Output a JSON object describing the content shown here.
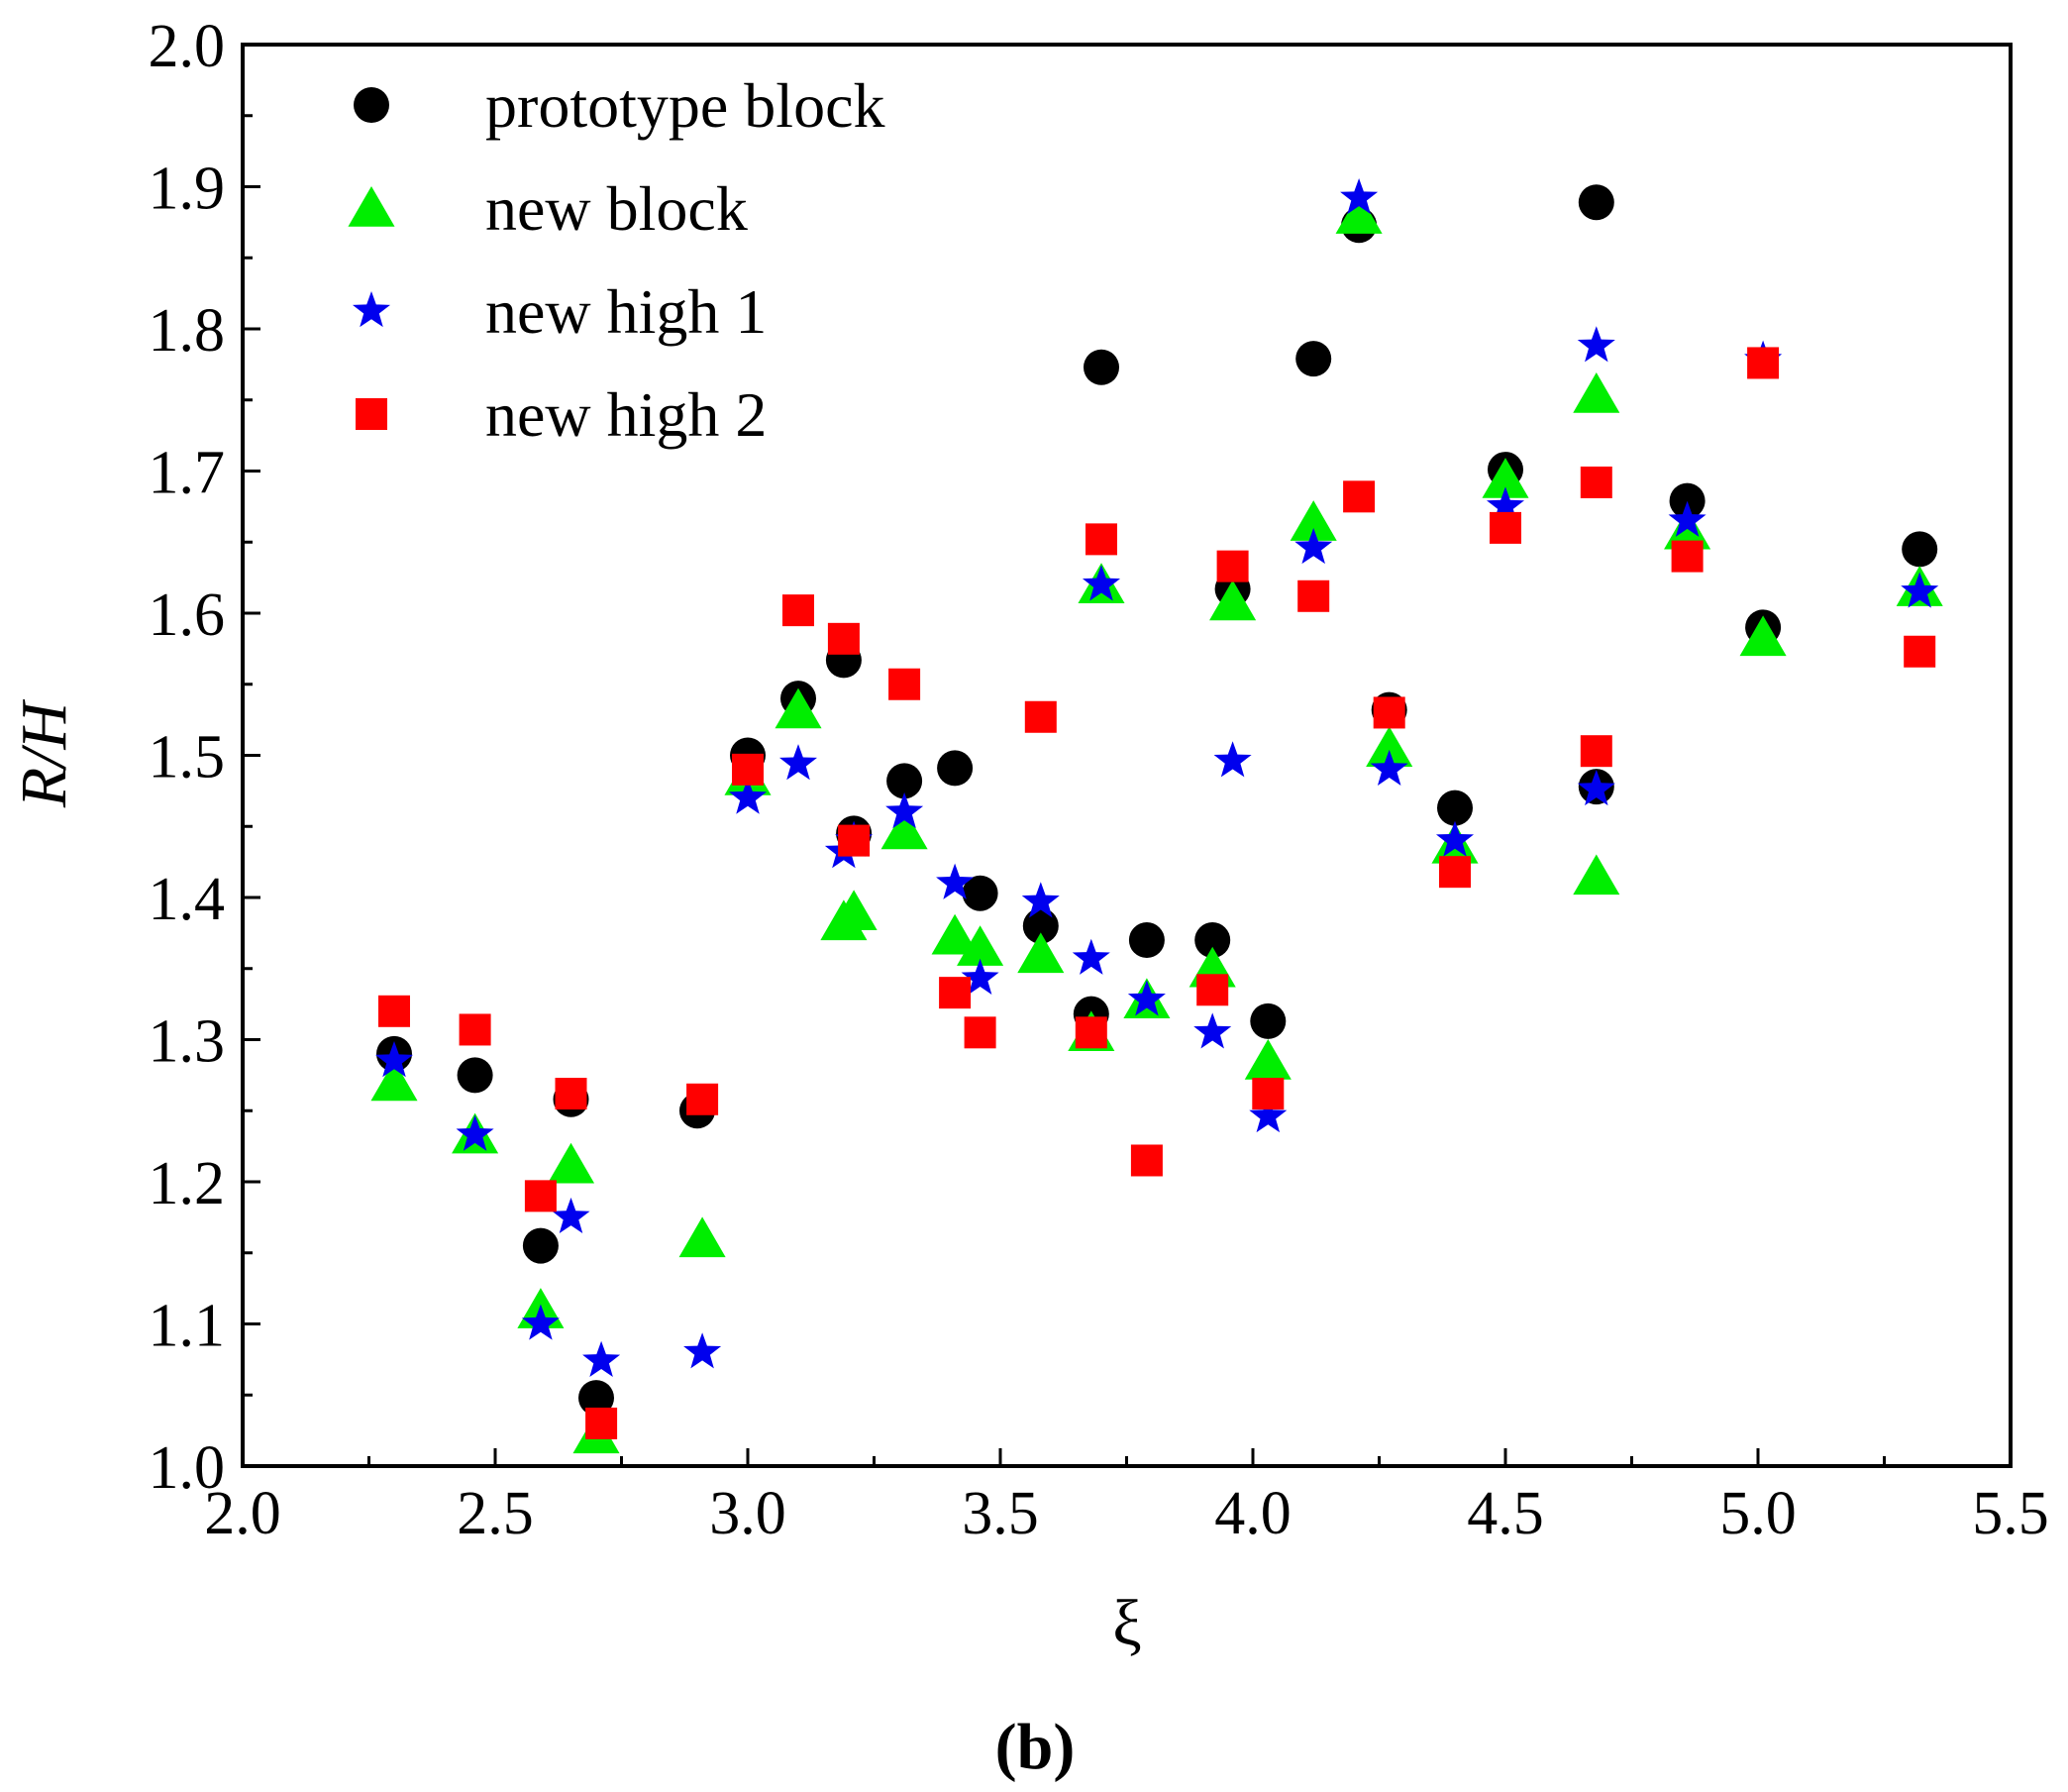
{
  "chart_data": {
    "type": "scatter",
    "title": "",
    "panel_label": "(b)",
    "xlabel": "ξ",
    "ylabel": "R/H",
    "xlim": [
      2.0,
      5.5
    ],
    "ylim": [
      1.0,
      2.0
    ],
    "x_ticks": [
      "2.0",
      "2.5",
      "3.0",
      "3.5",
      "4.0",
      "4.5",
      "5.0",
      "5.5"
    ],
    "y_ticks": [
      "1.0",
      "1.1",
      "1.2",
      "1.3",
      "1.4",
      "1.5",
      "1.6",
      "1.7",
      "1.8",
      "1.9",
      "2.0"
    ],
    "grid": false,
    "legend_position": "top-left",
    "series": [
      {
        "name": "prototype block",
        "marker": "circle",
        "color": "#000000",
        "points": [
          [
            2.3,
            1.29
          ],
          [
            2.46,
            1.275
          ],
          [
            2.59,
            1.155
          ],
          [
            2.65,
            1.258
          ],
          [
            2.7,
            1.048
          ],
          [
            2.9,
            1.25
          ],
          [
            3.0,
            1.5
          ],
          [
            3.1,
            1.54
          ],
          [
            3.19,
            1.567
          ],
          [
            3.21,
            1.445
          ],
          [
            3.31,
            1.482
          ],
          [
            3.41,
            1.491
          ],
          [
            3.46,
            1.403
          ],
          [
            3.58,
            1.38
          ],
          [
            3.68,
            1.318
          ],
          [
            3.7,
            1.773
          ],
          [
            3.79,
            1.37
          ],
          [
            3.92,
            1.37
          ],
          [
            3.96,
            1.617
          ],
          [
            4.03,
            1.313
          ],
          [
            4.12,
            1.779
          ],
          [
            4.21,
            1.873
          ],
          [
            4.27,
            1.532
          ],
          [
            4.4,
            1.463
          ],
          [
            4.5,
            1.701
          ],
          [
            4.68,
            1.889
          ],
          [
            4.68,
            1.478
          ],
          [
            4.86,
            1.679
          ],
          [
            5.01,
            1.59
          ],
          [
            5.32,
            1.645
          ]
        ]
      },
      {
        "name": "new block",
        "marker": "triangle",
        "color": "#00ee00",
        "points": [
          [
            2.3,
            1.27
          ],
          [
            2.46,
            1.233
          ],
          [
            2.59,
            1.11
          ],
          [
            2.65,
            1.212
          ],
          [
            2.7,
            1.022
          ],
          [
            2.91,
            1.16
          ],
          [
            3.0,
            1.485
          ],
          [
            3.1,
            1.532
          ],
          [
            3.19,
            1.383
          ],
          [
            3.21,
            1.39
          ],
          [
            3.31,
            1.447
          ],
          [
            3.41,
            1.373
          ],
          [
            3.46,
            1.365
          ],
          [
            3.58,
            1.36
          ],
          [
            3.68,
            1.305
          ],
          [
            3.7,
            1.62
          ],
          [
            3.79,
            1.328
          ],
          [
            3.92,
            1.35
          ],
          [
            3.96,
            1.608
          ],
          [
            4.03,
            1.285
          ],
          [
            4.12,
            1.664
          ],
          [
            4.21,
            1.88
          ],
          [
            4.27,
            1.505
          ],
          [
            4.4,
            1.437
          ],
          [
            4.5,
            1.694
          ],
          [
            4.68,
            1.754
          ],
          [
            4.68,
            1.415
          ],
          [
            4.86,
            1.658
          ],
          [
            5.01,
            1.583
          ],
          [
            5.32,
            1.618
          ]
        ]
      },
      {
        "name": "new high 1",
        "marker": "star",
        "color": "#0000ee",
        "points": [
          [
            2.3,
            1.285
          ],
          [
            2.46,
            1.233
          ],
          [
            2.59,
            1.1
          ],
          [
            2.65,
            1.175
          ],
          [
            2.71,
            1.074
          ],
          [
            2.91,
            1.08
          ],
          [
            3.0,
            1.47
          ],
          [
            3.1,
            1.494
          ],
          [
            3.19,
            1.432
          ],
          [
            3.21,
            1.44
          ],
          [
            3.31,
            1.46
          ],
          [
            3.41,
            1.41
          ],
          [
            3.46,
            1.343
          ],
          [
            3.58,
            1.397
          ],
          [
            3.68,
            1.357
          ],
          [
            3.7,
            1.62
          ],
          [
            3.79,
            1.328
          ],
          [
            3.92,
            1.305
          ],
          [
            3.96,
            1.496
          ],
          [
            4.03,
            1.246
          ],
          [
            4.12,
            1.646
          ],
          [
            4.21,
            1.892
          ],
          [
            4.27,
            1.49
          ],
          [
            4.4,
            1.44
          ],
          [
            4.5,
            1.675
          ],
          [
            4.68,
            1.788
          ],
          [
            4.68,
            1.476
          ],
          [
            4.86,
            1.665
          ],
          [
            5.01,
            1.778
          ],
          [
            5.32,
            1.615
          ]
        ]
      },
      {
        "name": "new high 2",
        "marker": "square",
        "color": "#ff0000",
        "points": [
          [
            2.3,
            1.32
          ],
          [
            2.46,
            1.307
          ],
          [
            2.59,
            1.19
          ],
          [
            2.65,
            1.262
          ],
          [
            2.71,
            1.03
          ],
          [
            2.91,
            1.258
          ],
          [
            3.0,
            1.49
          ],
          [
            3.1,
            1.602
          ],
          [
            3.19,
            1.582
          ],
          [
            3.21,
            1.44
          ],
          [
            3.31,
            1.55
          ],
          [
            3.41,
            1.333
          ],
          [
            3.46,
            1.305
          ],
          [
            3.58,
            1.527
          ],
          [
            3.68,
            1.305
          ],
          [
            3.7,
            1.652
          ],
          [
            3.79,
            1.215
          ],
          [
            3.92,
            1.335
          ],
          [
            3.96,
            1.633
          ],
          [
            4.03,
            1.262
          ],
          [
            4.12,
            1.612
          ],
          [
            4.21,
            1.682
          ],
          [
            4.27,
            1.53
          ],
          [
            4.4,
            1.418
          ],
          [
            4.5,
            1.66
          ],
          [
            4.68,
            1.692
          ],
          [
            4.68,
            1.503
          ],
          [
            4.86,
            1.64
          ],
          [
            5.01,
            1.776
          ],
          [
            5.32,
            1.573
          ]
        ]
      }
    ]
  }
}
